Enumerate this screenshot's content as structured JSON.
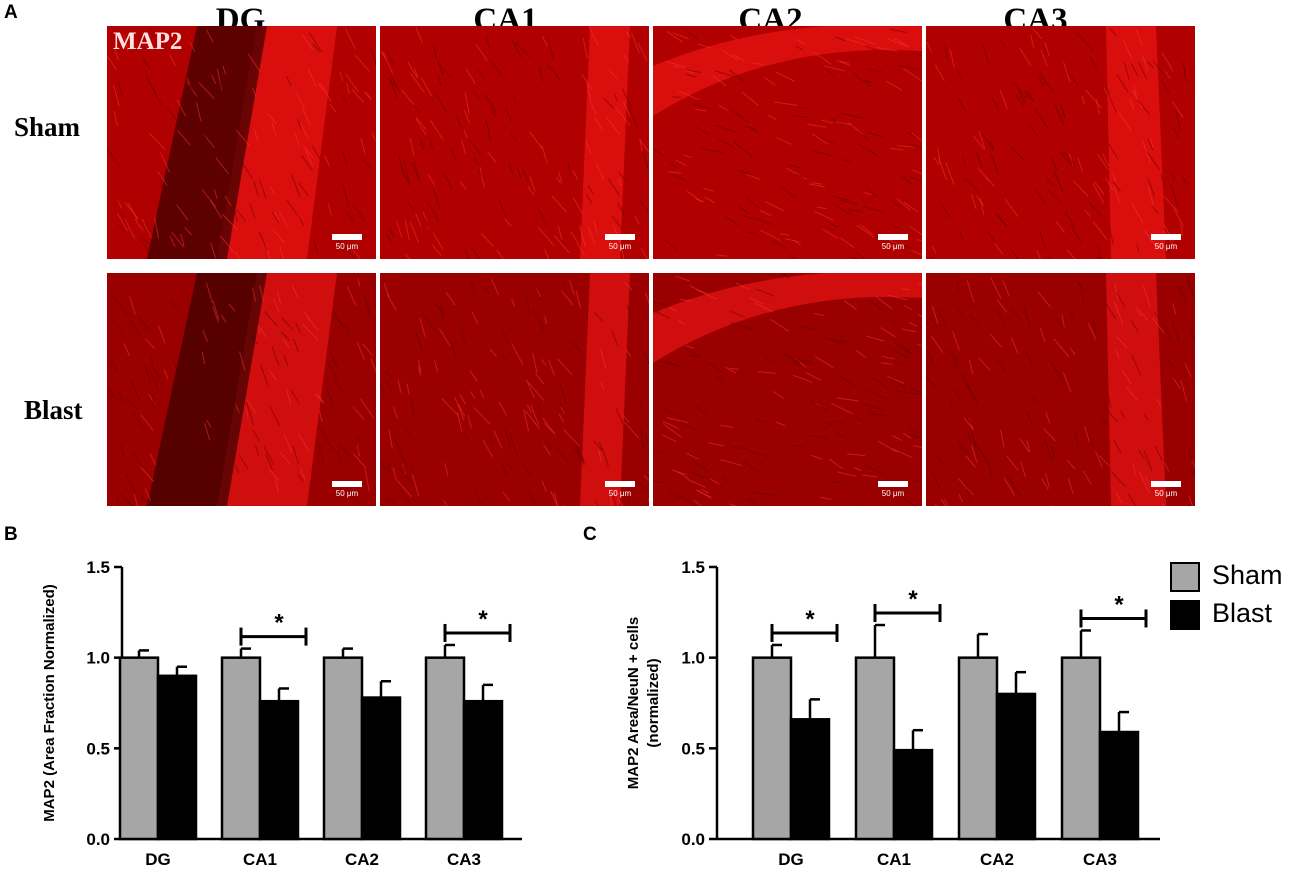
{
  "figure": {
    "panel_letters": [
      "A",
      "B",
      "C"
    ],
    "columns": [
      "DG",
      "CA1",
      "CA2",
      "CA3"
    ],
    "rows": [
      "Sham",
      "Blast"
    ],
    "stain_label": "MAP2",
    "scale_bar_label": "50 μm",
    "colors": {
      "sham": "#a6a6a6",
      "blast": "#000000",
      "stain": "#d00000"
    }
  },
  "legend": {
    "items": [
      {
        "label": "Sham",
        "color": "#a6a6a6"
      },
      {
        "label": "Blast",
        "color": "#000000"
      }
    ]
  },
  "chart_data": [
    {
      "type": "bar",
      "panel": "B",
      "categories": [
        "DG",
        "CA1",
        "CA2",
        "CA3"
      ],
      "series": [
        {
          "name": "Sham",
          "values": [
            1.0,
            1.0,
            1.0,
            1.0
          ],
          "errors": [
            0.04,
            0.05,
            0.05,
            0.07
          ]
        },
        {
          "name": "Blast",
          "values": [
            0.9,
            0.76,
            0.78,
            0.76
          ],
          "errors": [
            0.05,
            0.07,
            0.09,
            0.09
          ]
        }
      ],
      "significance": [
        {
          "category": "CA1",
          "label": "*"
        },
        {
          "category": "CA3",
          "label": "*"
        }
      ],
      "ylabel": "MAP2 (Area Fraction Normalized)",
      "xlabel": "",
      "ylim": [
        0,
        1.5
      ],
      "yticks": [
        "0.0",
        "0.5",
        "1.0",
        "1.5"
      ]
    },
    {
      "type": "bar",
      "panel": "C",
      "categories": [
        "DG",
        "CA1",
        "CA2",
        "CA3"
      ],
      "series": [
        {
          "name": "Sham",
          "values": [
            1.0,
            1.0,
            1.0,
            1.0
          ],
          "errors": [
            0.07,
            0.18,
            0.13,
            0.15
          ]
        },
        {
          "name": "Blast",
          "values": [
            0.66,
            0.49,
            0.8,
            0.59
          ],
          "errors": [
            0.11,
            0.11,
            0.12,
            0.11
          ]
        }
      ],
      "significance": [
        {
          "category": "DG",
          "label": "*"
        },
        {
          "category": "CA1",
          "label": "*"
        },
        {
          "category": "CA3",
          "label": "*"
        }
      ],
      "ylabel": [
        "MAP2 Area/NeuN + cells",
        "(normalized)"
      ],
      "xlabel": "",
      "ylim": [
        0,
        1.5
      ],
      "yticks": [
        "0.0",
        "0.5",
        "1.0",
        "1.5"
      ]
    }
  ]
}
